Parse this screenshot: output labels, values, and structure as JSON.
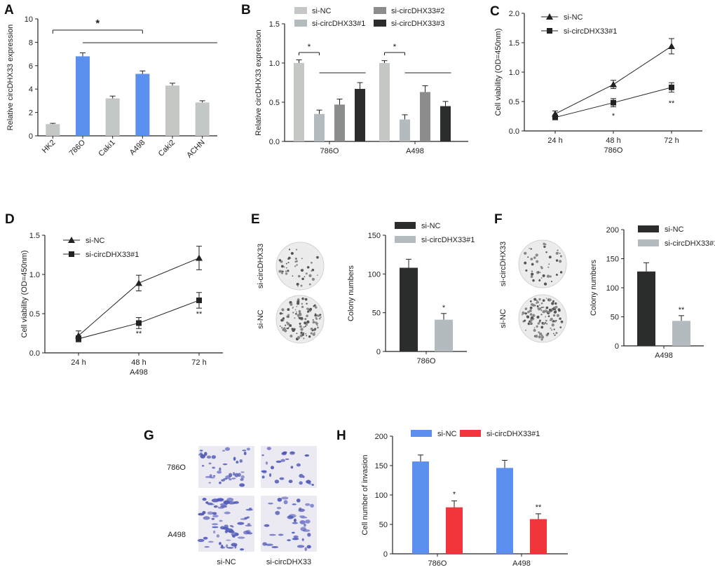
{
  "colors": {
    "axis": "#222222",
    "blue": "#5b8ff0",
    "gray_light": "#c3c8c5",
    "gray_mid": "#8a8d8c",
    "dark": "#2b2d2d",
    "red": "#f2353b",
    "gray_soft": "#b4bbbf",
    "stain": "#4e58b8",
    "dish": "#ececec"
  },
  "chart_data": [
    {
      "panel": "A",
      "type": "bar",
      "categories": [
        "HK2",
        "786O",
        "Caki1",
        "A498",
        "Caki2",
        "ACHN"
      ],
      "values": [
        1.0,
        6.8,
        3.2,
        5.3,
        4.3,
        2.85
      ],
      "errors": [
        0.07,
        0.3,
        0.2,
        0.25,
        0.2,
        0.15
      ],
      "bar_colors": [
        "gray_light",
        "blue",
        "gray_light",
        "blue",
        "gray_light",
        "gray_light"
      ],
      "ylabel": "Relative circDHX33 expression",
      "ylim": [
        0,
        10
      ],
      "yticks": [
        "0",
        "2",
        "4",
        "6",
        "8",
        "10"
      ],
      "annotation": "*"
    },
    {
      "panel": "B",
      "type": "bar",
      "categories": [
        "786O",
        "A498"
      ],
      "series": [
        {
          "name": "si-NC",
          "values": [
            1.0,
            1.0
          ],
          "errors": [
            0.04,
            0.03
          ],
          "color": "gray_light"
        },
        {
          "name": "si-circDHX33#1",
          "values": [
            0.35,
            0.28
          ],
          "errors": [
            0.05,
            0.06
          ],
          "color": "gray_soft"
        },
        {
          "name": "si-circDHX33#2",
          "values": [
            0.47,
            0.63
          ],
          "errors": [
            0.07,
            0.08
          ],
          "color": "gray_mid"
        },
        {
          "name": "si-circDHX33#3",
          "values": [
            0.67,
            0.45
          ],
          "errors": [
            0.08,
            0.06
          ],
          "color": "dark"
        }
      ],
      "ylabel": "Relative circDHX33 expression",
      "ylim": [
        0,
        1.5
      ],
      "yticks": [
        "0.0",
        "0.5",
        "1.0",
        "1.5"
      ],
      "annotations": [
        "*",
        "*"
      ]
    },
    {
      "panel": "C",
      "type": "line",
      "x": [
        "24 h",
        "48 h",
        "72 h"
      ],
      "series": [
        {
          "name": "si-NC",
          "values": [
            0.29,
            0.79,
            1.44
          ],
          "errors": [
            0.05,
            0.07,
            0.13
          ],
          "marker": "triangle"
        },
        {
          "name": "si-circDHX33#1",
          "values": [
            0.23,
            0.48,
            0.74
          ],
          "errors": [
            0.03,
            0.07,
            0.08
          ],
          "marker": "square"
        }
      ],
      "xlabel": "786O",
      "ylabel": "Cell viability (OD=450nm)",
      "ylim": [
        0,
        2.0
      ],
      "yticks": [
        "0.0",
        "0.5",
        "1.0",
        "1.5",
        "2.0"
      ],
      "annotations": [
        "*",
        "**"
      ]
    },
    {
      "panel": "D",
      "type": "line",
      "x": [
        "24 h",
        "48 h",
        "72 h"
      ],
      "series": [
        {
          "name": "si-NC",
          "values": [
            0.22,
            0.89,
            1.21
          ],
          "errors": [
            0.06,
            0.1,
            0.15
          ],
          "marker": "triangle"
        },
        {
          "name": "si-circDHX33#1",
          "values": [
            0.18,
            0.38,
            0.67
          ],
          "errors": [
            0.04,
            0.07,
            0.1
          ],
          "marker": "square"
        }
      ],
      "xlabel": "A498",
      "ylabel": "Cell viability (OD=450nm)",
      "ylim": [
        0,
        1.5
      ],
      "yticks": [
        "0.0",
        "0.5",
        "1.0",
        "1.5"
      ],
      "annotations": [
        "**",
        "**"
      ]
    },
    {
      "panel": "E",
      "type": "bar",
      "categories": [
        "786O"
      ],
      "series": [
        {
          "name": "si-NC",
          "values": [
            108
          ],
          "errors": [
            11
          ],
          "color": "dark"
        },
        {
          "name": "si-circDHX33#1",
          "values": [
            41
          ],
          "errors": [
            8
          ],
          "color": "gray_soft"
        }
      ],
      "ylabel": "Colony numbers",
      "ylim": [
        0,
        150
      ],
      "yticks": [
        "0",
        "50",
        "100",
        "150"
      ],
      "annotations": [
        "*"
      ],
      "dish_labels": [
        "si-circDHX33",
        "si-NC"
      ]
    },
    {
      "panel": "F",
      "type": "bar",
      "categories": [
        "A498"
      ],
      "series": [
        {
          "name": "si-NC",
          "values": [
            128
          ],
          "errors": [
            15
          ],
          "color": "dark"
        },
        {
          "name": "si-circDHX33#1",
          "values": [
            43
          ],
          "errors": [
            9
          ],
          "color": "gray_soft"
        }
      ],
      "ylabel": "Colony numbers",
      "ylim": [
        0,
        200
      ],
      "yticks": [
        "0",
        "50",
        "100",
        "150",
        "200"
      ],
      "annotations": [
        "**"
      ],
      "dish_labels": [
        "si-circDHX33",
        "si-NC"
      ]
    },
    {
      "panel": "H",
      "type": "bar",
      "categories": [
        "786O",
        "A498"
      ],
      "series": [
        {
          "name": "si-NC",
          "values": [
            157,
            146
          ],
          "errors": [
            11,
            13
          ],
          "color": "blue"
        },
        {
          "name": "si-circDHX33#1",
          "values": [
            79,
            59
          ],
          "errors": [
            11,
            9
          ],
          "color": "red"
        }
      ],
      "ylabel": "Cell number of invasion",
      "ylim": [
        0,
        200
      ],
      "yticks": [
        "0",
        "50",
        "100",
        "150",
        "200"
      ],
      "annotations": [
        "*",
        "**"
      ]
    }
  ],
  "panel_g": {
    "label": "G",
    "row_labels": [
      "786O",
      "A498"
    ],
    "col_labels": [
      "si-NC",
      "si-circDHX33"
    ]
  }
}
